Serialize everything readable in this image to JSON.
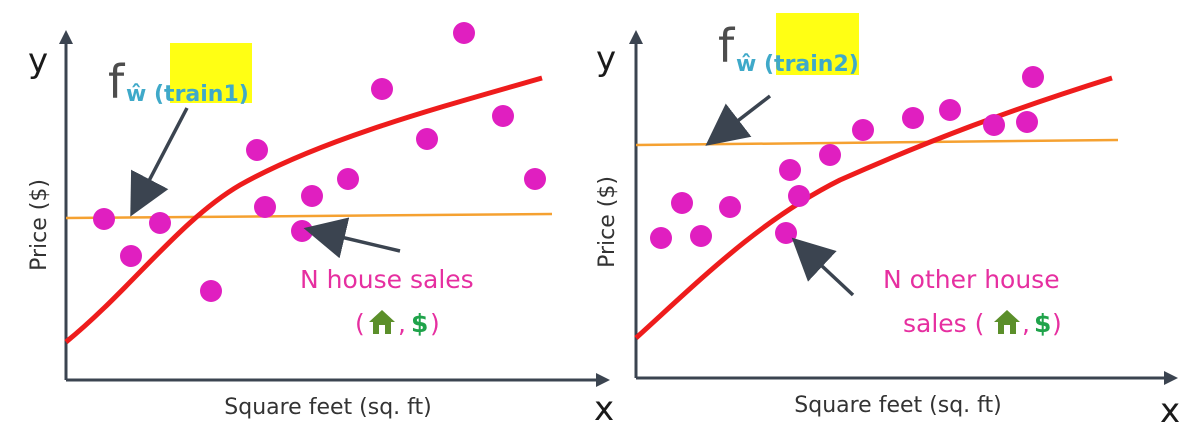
{
  "colors": {
    "point": "#e01fc0",
    "model_curve": "#ee1c1c",
    "constant_line": "#f5a131",
    "axis": "#3b4450",
    "annotation": "#e62fa0",
    "subscript": "#3fa9c9",
    "highlight": "#ffff14",
    "house_icon": "#5b8f2a",
    "dollar": "#1fa34a"
  },
  "panels": [
    {
      "y_axis_letter": "y",
      "x_axis_letter": "x",
      "y_title": "Price ($)",
      "x_title": "Square feet (sq. ft)",
      "function_label": {
        "f": "f",
        "hat_w": "ŵ",
        "subscript": "(train1)"
      },
      "annotation": {
        "lines": [
          "N house sales",
          "(",
          ",",
          ")"
        ],
        "dollar": "$",
        "icon": "house-icon"
      }
    },
    {
      "y_axis_letter": "y",
      "x_axis_letter": "x",
      "y_title": "Price ($)",
      "x_title": "Square feet (sq. ft)",
      "function_label": {
        "f": "f",
        "hat_w": "ŵ",
        "subscript": "(train2)"
      },
      "annotation": {
        "lines": [
          "N other house",
          "sales (",
          ",",
          ")"
        ],
        "dollar": "$",
        "icon": "house-icon"
      }
    }
  ]
}
